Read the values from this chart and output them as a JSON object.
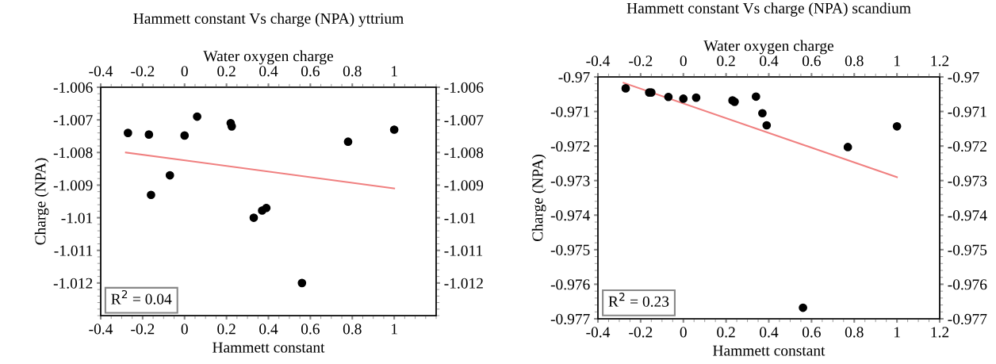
{
  "chart_data": [
    {
      "type": "scatter",
      "title": "Hammett constant Vs charge (NPA) yttrium",
      "x2label": "Water oxygen charge",
      "xlabel": "Hammett constant",
      "ylabel": "Charge (NPA)",
      "xlim": [
        -0.4,
        1.2
      ],
      "xticks": [
        -0.4,
        -0.2,
        0,
        0.2,
        0.4,
        0.6,
        0.8,
        1
      ],
      "x2lim": [
        -0.4,
        1.2
      ],
      "x2ticks": [
        -0.4,
        -0.2,
        0,
        0.2,
        0.4,
        0.6,
        0.8,
        1
      ],
      "ylim": [
        -1.013,
        -1.006
      ],
      "yticks": [
        -1.006,
        -1.007,
        -1.008,
        -1.009,
        -1.01,
        -1.011,
        -1.012
      ],
      "y2lim": [
        -1.013,
        -1.006
      ],
      "y2ticks": [
        -1.006,
        -1.007,
        -1.008,
        -1.009,
        -1.01,
        -1.011,
        -1.012
      ],
      "grid": false,
      "legend": false,
      "annotations": [
        "R$^{2}$ = 0.04"
      ],
      "series": [
        {
          "marker": "circle",
          "color": "#000000",
          "x": [
            -0.27,
            -0.17,
            -0.16,
            -0.07,
            0.0,
            0.06,
            0.22,
            0.225,
            0.33,
            0.37,
            0.39,
            0.56,
            0.78,
            1.0
          ],
          "values": [
            -1.0074,
            -1.00745,
            -1.0093,
            -1.0087,
            -1.00748,
            -1.0069,
            -1.0071,
            -1.0072,
            -1.01,
            -1.00978,
            -1.0097,
            -1.012,
            -1.00767,
            -1.0073
          ]
        },
        {
          "type": "line",
          "color": "#f08080",
          "x": [
            -0.28,
            1.0
          ],
          "values": [
            -1.008,
            -1.0091
          ]
        }
      ]
    },
    {
      "type": "scatter",
      "title": "Hammett constant Vs charge (NPA) scandium",
      "x2label": "Water oxygen charge",
      "xlabel": "Hammett constant",
      "ylabel": "Charge (NPA)",
      "xlim": [
        -0.4,
        1.2
      ],
      "xticks": [
        -0.4,
        -0.2,
        0,
        0.2,
        0.4,
        0.6,
        0.8,
        1,
        1.2
      ],
      "x2lim": [
        -0.4,
        1.2
      ],
      "x2ticks": [
        -0.4,
        -0.2,
        0,
        0.2,
        0.4,
        0.6,
        0.8,
        1,
        1.2
      ],
      "ylim": [
        -0.977,
        -0.97
      ],
      "yticks": [
        -0.97,
        -0.971,
        -0.972,
        -0.973,
        -0.974,
        -0.975,
        -0.976,
        -0.977
      ],
      "y2lim": [
        -0.977,
        -0.97
      ],
      "y2ticks": [
        -0.97,
        -0.971,
        -0.972,
        -0.973,
        -0.974,
        -0.975,
        -0.976,
        -0.977
      ],
      "grid": false,
      "legend": false,
      "annotations": [
        "R$^{2}$ = 0.23"
      ],
      "series": [
        {
          "marker": "circle",
          "color": "#000000",
          "x": [
            -0.27,
            -0.16,
            -0.15,
            -0.07,
            0.0,
            0.06,
            0.23,
            0.24,
            0.34,
            0.37,
            0.39,
            0.56,
            0.77,
            1.0
          ],
          "values": [
            -0.97033,
            -0.97045,
            -0.97045,
            -0.97058,
            -0.97063,
            -0.9706,
            -0.97068,
            -0.97072,
            -0.97057,
            -0.97105,
            -0.9714,
            -0.97668,
            -0.97203,
            -0.97143
          ]
        },
        {
          "type": "line",
          "color": "#f08080",
          "x": [
            -0.28,
            1.0
          ],
          "values": [
            -0.97017,
            -0.9729
          ]
        }
      ]
    }
  ]
}
